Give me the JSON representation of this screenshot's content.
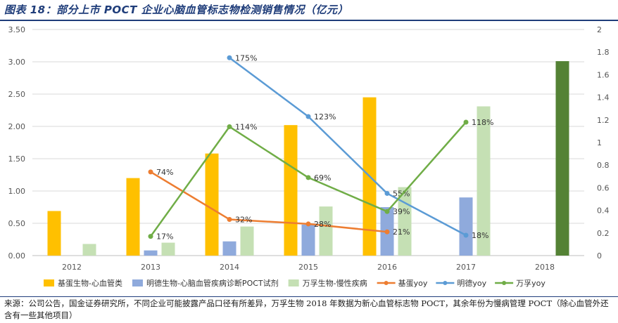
{
  "title": "图表 18：部分上市 POCT 企业心脑血管标志物检测销售情况（亿元）",
  "footer": "来源：公司公告，国金证券研究所，不同企业可能披露产品口径有所差异，万孚生物 2018 年数据为新心血管标志物 POCT，其余年份为慢病管理 POCT（除心血管外还含有一些其他项目）",
  "chart_data": {
    "type": "bar+line",
    "categories": [
      "2012",
      "2013",
      "2014",
      "2015",
      "2016",
      "2017",
      "2018"
    ],
    "left_axis": {
      "min": 0,
      "max": 3.5,
      "step": 0.5,
      "decimals": 2
    },
    "right_axis": {
      "min": 0,
      "max": 2,
      "step": 0.2,
      "decimals": 1
    },
    "bar_series": [
      {
        "name": "基蛋生物-心血管类",
        "color": "#FFC000",
        "values": [
          0.69,
          1.2,
          1.58,
          2.02,
          2.45,
          null,
          null
        ]
      },
      {
        "name": "明德生物-心脑血管疾病诊断POCT试剂",
        "color": "#8FAADC",
        "values": [
          null,
          0.08,
          0.22,
          0.48,
          0.75,
          0.9,
          null
        ]
      },
      {
        "name": "万孚生物-慢性疾病",
        "color": "#C5E0B4",
        "values": [
          0.18,
          0.2,
          0.45,
          0.76,
          1.06,
          2.31,
          3.01
        ]
      }
    ],
    "line_series": [
      {
        "name": "基蛋yoy",
        "color": "#ED7D31",
        "values": [
          null,
          0.74,
          0.32,
          0.28,
          0.21,
          null,
          null
        ],
        "labels": [
          null,
          "74%",
          "32%",
          "28%",
          "21%",
          null,
          null
        ]
      },
      {
        "name": "明德yoy",
        "color": "#5B9BD5",
        "values": [
          null,
          null,
          1.75,
          1.23,
          0.55,
          0.18,
          null
        ],
        "labels": [
          null,
          null,
          "175%",
          "123%",
          "55%",
          "18%",
          null
        ]
      },
      {
        "name": "万孚yoy",
        "color": "#70AD47",
        "values": [
          null,
          0.17,
          1.14,
          0.69,
          0.39,
          1.18,
          null
        ],
        "labels": [
          null,
          "17%",
          "114%",
          "69%",
          "39%",
          "118%",
          null
        ]
      }
    ],
    "highlight": {
      "category": "2018",
      "series": "万孚生物-慢性疾病",
      "color": "#548235"
    }
  }
}
